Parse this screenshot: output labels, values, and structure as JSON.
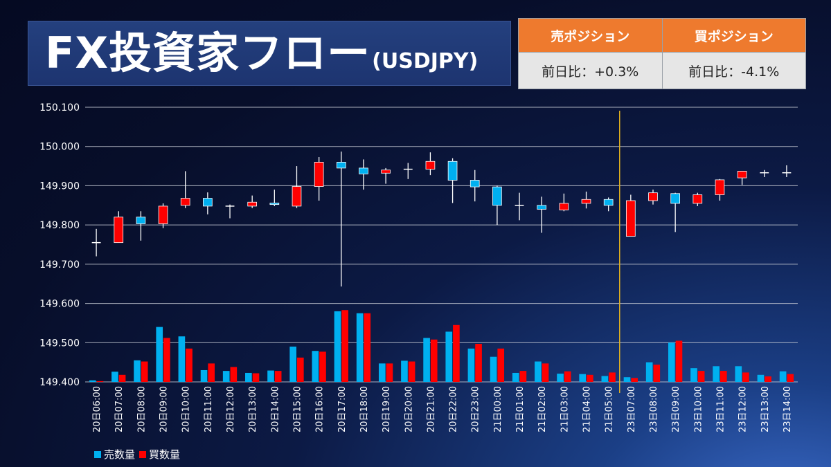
{
  "header": {
    "title": "FX投資家フロー",
    "subtitle": "(USDJPY)"
  },
  "positions": {
    "sell": {
      "label": "売ポジション",
      "change": "前日比：+0.3%"
    },
    "buy": {
      "label": "買ポジション",
      "change": "前日比：-4.1%"
    }
  },
  "colors": {
    "up": "#ff0000",
    "down": "#00b0f0",
    "sell_volume": "#00b0f0",
    "buy_volume": "#ff0000",
    "divider": "#e0b020",
    "header_accent": "#ee7a2e"
  },
  "chart_data": {
    "type": "candlestick+bar",
    "ylim": [
      149.4,
      150.1
    ],
    "y_ticks": [
      "149.400",
      "149.500",
      "149.600",
      "149.700",
      "149.800",
      "149.900",
      "150.000",
      "150.100"
    ],
    "grid": true,
    "legend_position": "bottom-left",
    "divider_after_category": "21日05:00",
    "categories": [
      "20日06:00",
      "20日07:00",
      "20日08:00",
      "20日09:00",
      "20日10:00",
      "20日11:00",
      "20日12:00",
      "20日13:00",
      "20日14:00",
      "20日15:00",
      "20日16:00",
      "20日17:00",
      "20日18:00",
      "20日19:00",
      "20日20:00",
      "20日21:00",
      "20日22:00",
      "20日23:00",
      "21日00:00",
      "21日01:00",
      "21日02:00",
      "21日03:00",
      "21日04:00",
      "21日05:00",
      "23日07:00",
      "23日08:00",
      "23日09:00",
      "23日10:00",
      "23日11:00",
      "23日12:00",
      "23日13:00",
      "23日14:00"
    ],
    "ohlc": [
      [
        149.755,
        149.79,
        149.72,
        149.755
      ],
      [
        149.755,
        149.835,
        149.755,
        149.82
      ],
      [
        149.82,
        149.835,
        149.76,
        149.803
      ],
      [
        149.803,
        149.855,
        149.792,
        149.848
      ],
      [
        149.85,
        149.937,
        149.843,
        149.868
      ],
      [
        149.868,
        149.883,
        149.827,
        149.848
      ],
      [
        149.848,
        149.852,
        149.817,
        149.848
      ],
      [
        149.848,
        149.875,
        149.843,
        149.858
      ],
      [
        149.856,
        149.89,
        149.848,
        149.852
      ],
      [
        149.848,
        149.95,
        149.843,
        149.898
      ],
      [
        149.898,
        149.973,
        149.862,
        149.96
      ],
      [
        149.96,
        149.987,
        149.643,
        149.945
      ],
      [
        149.945,
        149.967,
        149.89,
        149.93
      ],
      [
        149.932,
        149.945,
        149.905,
        149.94
      ],
      [
        149.94,
        149.958,
        149.917,
        149.942
      ],
      [
        149.942,
        149.985,
        149.927,
        149.962
      ],
      [
        149.962,
        149.97,
        149.856,
        149.914
      ],
      [
        149.914,
        149.94,
        149.86,
        149.897
      ],
      [
        149.897,
        149.9,
        149.8,
        149.85
      ],
      [
        149.85,
        149.882,
        149.812,
        149.85
      ],
      [
        149.85,
        149.872,
        149.78,
        149.84
      ],
      [
        149.838,
        149.88,
        149.835,
        149.855
      ],
      [
        149.855,
        149.885,
        149.842,
        149.865
      ],
      [
        149.865,
        149.87,
        149.835,
        149.85
      ],
      [
        149.771,
        149.877,
        149.771,
        149.862
      ],
      [
        149.862,
        149.89,
        149.852,
        149.882
      ],
      [
        149.88,
        149.882,
        149.782,
        149.855
      ],
      [
        149.855,
        149.882,
        149.848,
        149.877
      ],
      [
        149.877,
        149.917,
        149.862,
        149.915
      ],
      [
        149.92,
        149.937,
        149.902,
        149.937
      ],
      [
        149.933,
        149.94,
        149.922,
        149.933
      ],
      [
        149.933,
        149.952,
        149.922,
        149.933
      ]
    ],
    "series": [
      {
        "name": "売数量",
        "values": [
          149.404,
          149.426,
          149.455,
          149.54,
          149.516,
          149.43,
          149.428,
          149.423,
          149.429,
          149.49,
          149.479,
          149.58,
          149.575,
          149.447,
          149.454,
          149.512,
          149.528,
          149.485,
          149.464,
          149.423,
          149.452,
          149.421,
          149.42,
          149.415,
          149.412,
          149.45,
          149.5,
          149.435,
          149.44,
          149.44,
          149.418,
          149.427
        ]
      },
      {
        "name": "買数量",
        "values": [
          149.402,
          149.418,
          149.452,
          149.512,
          149.485,
          149.447,
          149.438,
          149.422,
          149.428,
          149.462,
          149.477,
          149.583,
          149.575,
          149.447,
          149.452,
          149.508,
          149.545,
          149.497,
          149.485,
          149.428,
          149.447,
          149.427,
          149.418,
          149.424,
          149.41,
          149.444,
          149.505,
          149.428,
          149.428,
          149.424,
          149.414,
          149.42
        ]
      }
    ]
  }
}
